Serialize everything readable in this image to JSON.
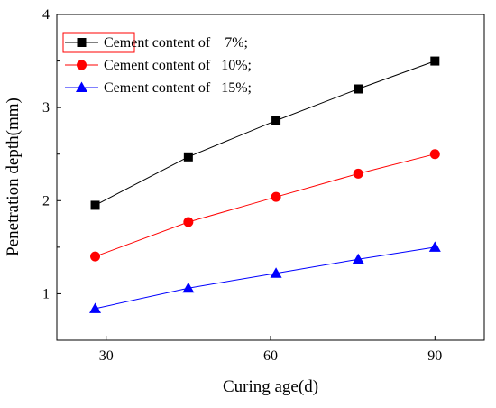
{
  "chart_data": {
    "type": "line",
    "title": "",
    "xlabel": "Curing age(d)",
    "ylabel": "Penetration depth(mm)",
    "x": [
      28,
      45,
      61,
      76,
      90
    ],
    "xticks": [
      30,
      60,
      90
    ],
    "yticks": [
      1,
      2,
      3,
      4
    ],
    "xlim": [
      21,
      99
    ],
    "ylim": [
      0.5,
      4
    ],
    "grid": false,
    "legend_position": "top-left",
    "series": [
      {
        "name": "Cement content of    7%;",
        "values": [
          1.95,
          2.47,
          2.86,
          3.2,
          3.5
        ],
        "color": "#000000",
        "marker": "square"
      },
      {
        "name": "Cement content of   10%;",
        "values": [
          1.4,
          1.77,
          2.04,
          2.29,
          2.5
        ],
        "color": "#ff0000",
        "marker": "circle"
      },
      {
        "name": "Cement content of   15%;",
        "values": [
          0.84,
          1.06,
          1.22,
          1.37,
          1.5
        ],
        "color": "#0000ff",
        "marker": "triangle"
      }
    ]
  }
}
